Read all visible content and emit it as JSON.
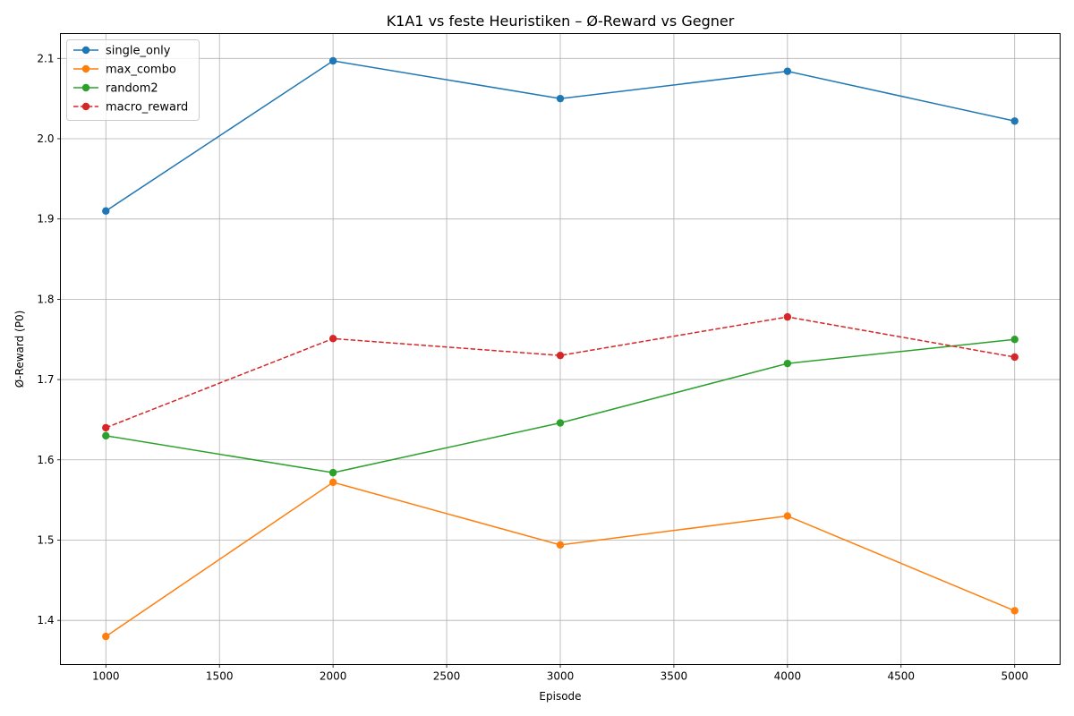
{
  "chart_data": {
    "type": "line",
    "title": "K1A1 vs feste Heuristiken – Ø-Reward vs Gegner",
    "xlabel": "Episode",
    "ylabel": "Ø-Reward (P0)",
    "x": [
      1000,
      2000,
      3000,
      4000,
      5000
    ],
    "xlim": [
      800,
      5200
    ],
    "ylim": [
      1.345,
      2.131
    ],
    "xticks": [
      1000,
      1500,
      2000,
      2500,
      3000,
      3500,
      4000,
      4500,
      5000
    ],
    "yticks": [
      1.4,
      1.5,
      1.6,
      1.7,
      1.8,
      1.9,
      2.0,
      2.1
    ],
    "grid": true,
    "legend_position": "upper-left",
    "series": [
      {
        "name": "single_only",
        "color": "#1f77b4",
        "dashed": false,
        "values": [
          1.91,
          2.097,
          2.05,
          2.084,
          2.022
        ]
      },
      {
        "name": "max_combo",
        "color": "#ff7f0e",
        "dashed": false,
        "values": [
          1.38,
          1.572,
          1.494,
          1.53,
          1.412
        ]
      },
      {
        "name": "random2",
        "color": "#2ca02c",
        "dashed": false,
        "values": [
          1.63,
          1.584,
          1.646,
          1.72,
          1.75
        ]
      },
      {
        "name": "macro_reward",
        "color": "#d62728",
        "dashed": true,
        "values": [
          1.64,
          1.751,
          1.73,
          1.778,
          1.728
        ]
      }
    ]
  }
}
